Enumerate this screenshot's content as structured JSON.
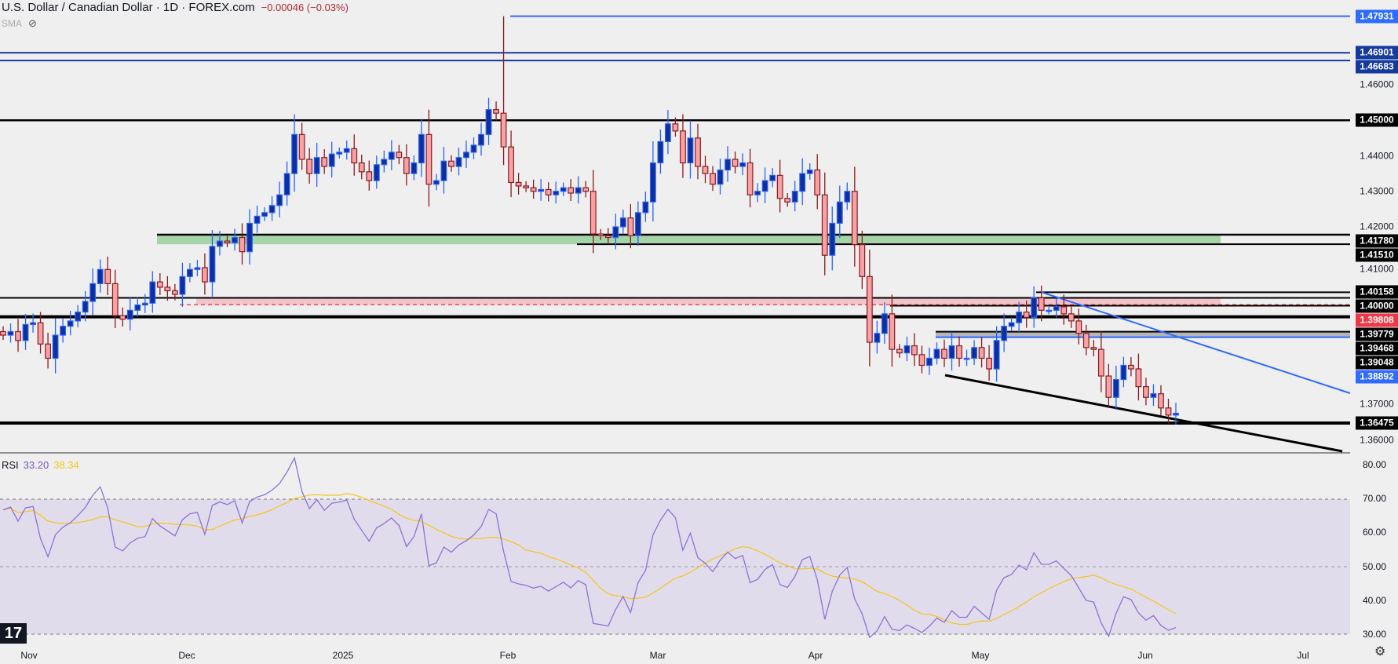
{
  "header": {
    "title": "U.S. Dollar / Canadian Dollar · 1D · FOREX.com",
    "change": "−0.00046 (−0.03%)",
    "indicator": "SMA",
    "logo_text": "TV"
  },
  "colors": {
    "bull_body": "#0e2f9c",
    "bull_border": "#2962ff",
    "bear_body": "#f7a3a6",
    "bear_border": "#8b1a1f",
    "rsi_line": "#8e72d6",
    "rsi_sma": "#f5c518",
    "rsi_band": "#e1dcec"
  },
  "price_axis": {
    "ticks": [
      "1.46000",
      "1.44000",
      "1.43000",
      "1.42000",
      "1.41000",
      "1.37000",
      "1.36000"
    ],
    "tick_values": [
      1.46,
      1.44,
      1.43,
      1.42,
      1.41,
      1.37,
      1.36
    ]
  },
  "levels": [
    {
      "label": "1.47931",
      "value": 1.47931,
      "color": "#2f6bff",
      "style": "line"
    },
    {
      "label": "1.46901",
      "value": 1.46901,
      "color": "#153a9e",
      "style": "line"
    },
    {
      "label": "1.46683",
      "value": 1.46683,
      "color": "#153a9e",
      "style": "line"
    },
    {
      "label": "1.45000",
      "value": 1.45,
      "color": "#000000",
      "style": "line"
    },
    {
      "label": "1.41780",
      "value": 1.4178,
      "color": "#000000",
      "style": "line"
    },
    {
      "label": "1.41510",
      "value": 1.4151,
      "color": "#000000",
      "style": "line"
    },
    {
      "label": "1.40158",
      "value": 1.40158,
      "color": "#000000",
      "style": "line"
    },
    {
      "label": "1.40000",
      "value": 1.4,
      "color": "#000000",
      "style": "line"
    },
    {
      "label": "1.39808",
      "value": 1.39808,
      "color": "#f23645",
      "style": "dashed"
    },
    {
      "label": "1.39779",
      "value": 1.39779,
      "color": "#000000",
      "style": "line"
    },
    {
      "label": "1.39468",
      "value": 1.39468,
      "color": "#000000",
      "style": "thick"
    },
    {
      "label": "1.39048",
      "value": 1.39048,
      "color": "#000000",
      "style": "line"
    },
    {
      "label": "1.38892",
      "value": 1.38892,
      "color": "#2f6bff",
      "style": "line"
    },
    {
      "label": "1.36475",
      "value": 1.36475,
      "color": "#000000",
      "style": "thick"
    }
  ],
  "zones": [
    {
      "name": "support-zone-green",
      "from": 1.4151,
      "to": 1.4178,
      "color": "#a6d4a9"
    },
    {
      "name": "resistance-zone-pink",
      "from": 1.39808,
      "to": 1.4,
      "color": "#f0c4c8"
    },
    {
      "name": "zone-gray",
      "from": 1.38892,
      "to": 1.39048,
      "color": "#b5b5b5"
    }
  ],
  "x_axis": {
    "labels": [
      "Nov",
      "Dec",
      "2025",
      "Feb",
      "Mar",
      "Apr",
      "May",
      "Jun",
      "Jul"
    ]
  },
  "rsi": {
    "label": "RSI",
    "value": "33.20",
    "sma_value": "38.34",
    "period": 14,
    "ticks": [
      "80.00",
      "70.00",
      "60.00",
      "50.00",
      "40.00",
      "30.00"
    ],
    "tick_values": [
      80,
      70,
      60,
      50,
      40,
      30
    ]
  },
  "chart_data": {
    "type": "candlestick",
    "title": "U.S. Dollar / Canadian Dollar · 1D · FOREX.com",
    "spike_highs": [
      {
        "bar": 67,
        "high": 1.47931
      }
    ],
    "closes": [
      1.3895,
      1.3905,
      1.388,
      1.3925,
      1.393,
      1.387,
      1.383,
      1.3895,
      1.392,
      1.3935,
      1.396,
      1.399,
      1.404,
      1.408,
      1.404,
      1.395,
      1.394,
      1.3965,
      1.398,
      1.3985,
      1.4045,
      1.403,
      1.402,
      1.401,
      1.406,
      1.408,
      1.4085,
      1.4045,
      1.4145,
      1.416,
      1.4155,
      1.417,
      1.413,
      1.421,
      1.423,
      1.424,
      1.426,
      1.429,
      1.435,
      1.446,
      1.439,
      1.435,
      1.4395,
      1.437,
      1.4405,
      1.441,
      1.442,
      1.438,
      1.4355,
      1.433,
      1.4375,
      1.439,
      1.441,
      1.4395,
      1.435,
      1.438,
      1.446,
      1.432,
      1.433,
      1.4385,
      1.437,
      1.4395,
      1.441,
      1.443,
      1.446,
      1.453,
      1.452,
      1.4425,
      1.4325,
      1.4315,
      1.431,
      1.43,
      1.4305,
      1.429,
      1.43,
      1.431,
      1.4295,
      1.431,
      1.43,
      1.418,
      1.4175,
      1.417,
      1.42,
      1.4225,
      1.4175,
      1.424,
      1.427,
      1.438,
      1.444,
      1.449,
      1.447,
      1.438,
      1.445,
      1.437,
      1.435,
      1.432,
      1.436,
      1.439,
      1.437,
      1.438,
      1.429,
      1.43,
      1.433,
      1.4345,
      1.428,
      1.427,
      1.43,
      1.435,
      1.436,
      1.429,
      1.412,
      1.421,
      1.427,
      1.43,
      1.415,
      1.406,
      1.3875,
      1.39,
      1.3955,
      1.3855,
      1.3845,
      1.3865,
      1.384,
      1.381,
      1.383,
      1.3855,
      1.383,
      1.3865,
      1.383,
      1.383,
      1.386,
      1.383,
      1.38,
      1.388,
      1.392,
      1.393,
      1.396,
      1.3945,
      1.4,
      1.3965,
      1.3965,
      1.3975,
      1.3955,
      1.3935,
      1.39,
      1.386,
      1.3855,
      1.378,
      1.372,
      1.377,
      1.381,
      1.38,
      1.375,
      1.372,
      1.373,
      1.369,
      1.367,
      1.3675
    ]
  }
}
